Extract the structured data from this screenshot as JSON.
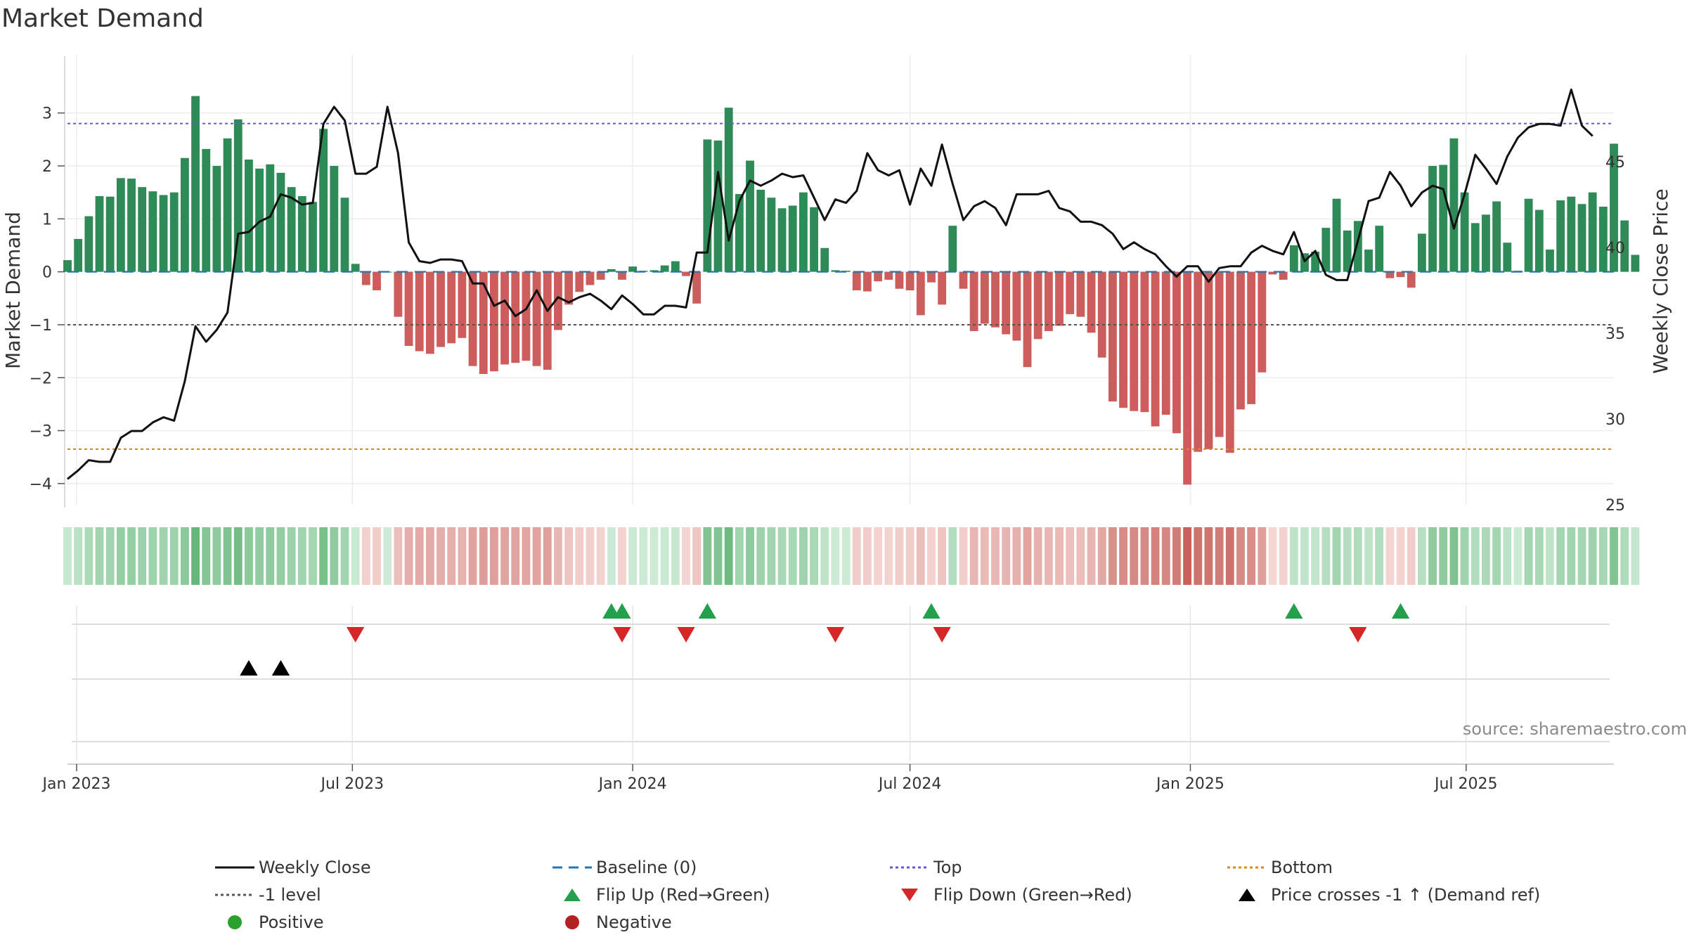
{
  "title": "Market Demand",
  "source": "source: sharemaestro.com",
  "colors": {
    "positive_bar": "#2e8b57",
    "negative_bar": "#cd5c5c",
    "close_line": "#111111",
    "baseline": "#1f77b4",
    "top_line": "#6a5acd",
    "minus1_line": "#555555",
    "bottom_line": "#d98c1a",
    "flip_up": "#22a04b",
    "flip_down": "#d62728",
    "price_cross": "#000000",
    "positive_dot": "#2ca02c",
    "negative_dot": "#b22222"
  },
  "legend": [
    {
      "key": "weekly_close",
      "label": "Weekly Close",
      "icon": "solid-line"
    },
    {
      "key": "baseline",
      "label": "Baseline (0)",
      "icon": "dashed-line"
    },
    {
      "key": "top",
      "label": "Top",
      "icon": "dotted-line"
    },
    {
      "key": "bottom",
      "label": "Bottom",
      "icon": "dotted-line"
    },
    {
      "key": "minus1",
      "label": "-1 level",
      "icon": "dotted-line"
    },
    {
      "key": "flip_up",
      "label": "Flip Up (Red→Green)",
      "icon": "triangle-up"
    },
    {
      "key": "flip_down",
      "label": "Flip Down (Green→Red)",
      "icon": "triangle-down"
    },
    {
      "key": "price_cross",
      "label": "Price crosses -1 ↑ (Demand ref)",
      "icon": "triangle-up"
    },
    {
      "key": "positive",
      "label": "Positive",
      "icon": "circle"
    },
    {
      "key": "negative",
      "label": "Negative",
      "icon": "circle"
    }
  ],
  "chart_data": {
    "type": "bar",
    "title": "Market Demand",
    "ylabel": "Market Demand",
    "y2label": "Weekly Close Price",
    "ylim": [
      -4.4,
      3.7
    ],
    "y2lim": [
      25,
      50
    ],
    "yticks": [
      "−4",
      "−3",
      "−2",
      "−1",
      "0",
      "1",
      "2",
      "3"
    ],
    "yticks_values": [
      -4,
      -3,
      -2,
      -1,
      0,
      1,
      2,
      3
    ],
    "y2ticks": [
      "25",
      "30",
      "35",
      "40",
      "45"
    ],
    "y2ticks_values": [
      25,
      30,
      35,
      40,
      45
    ],
    "x_start": "2022-12-26",
    "x_end": "2025-10-06",
    "xticks": [
      {
        "label": "Jan 2023",
        "date": "2023-01-01"
      },
      {
        "label": "Jul 2023",
        "date": "2023-07-01"
      },
      {
        "label": "Jan 2024",
        "date": "2024-01-01"
      },
      {
        "label": "Jul 2024",
        "date": "2024-07-01"
      },
      {
        "label": "Jan 2025",
        "date": "2025-01-01"
      },
      {
        "label": "Jul 2025",
        "date": "2025-07-01"
      }
    ],
    "first_week": "2022-12-26",
    "week_days": 7,
    "grid": true,
    "reference_lines": {
      "top": 2.8,
      "minus1": -1.0,
      "bottom": -3.35,
      "baseline": 0
    },
    "demand": [
      0.22,
      0.62,
      1.05,
      1.43,
      1.42,
      1.77,
      1.76,
      1.6,
      1.52,
      1.45,
      1.5,
      2.15,
      3.32,
      2.32,
      2.0,
      2.52,
      2.88,
      2.12,
      1.95,
      2.03,
      1.87,
      1.6,
      1.43,
      1.32,
      2.7,
      2.0,
      1.4,
      0.15,
      -0.25,
      -0.35,
      0,
      -0.85,
      -1.4,
      -1.5,
      -1.55,
      -1.42,
      -1.35,
      -1.25,
      -1.78,
      -1.93,
      -1.88,
      -1.75,
      -1.72,
      -1.68,
      -1.78,
      -1.85,
      -1.1,
      -0.62,
      -0.38,
      -0.25,
      -0.15,
      0.05,
      -0.15,
      0.1,
      0.02,
      0.03,
      0.12,
      0.2,
      -0.08,
      -0.6,
      2.5,
      2.48,
      3.1,
      1.47,
      2.1,
      1.55,
      1.4,
      1.2,
      1.25,
      1.5,
      1.22,
      0.45,
      0.03,
      0.02,
      -0.35,
      -0.37,
      -0.18,
      -0.15,
      -0.32,
      -0.35,
      -0.82,
      -0.2,
      -0.62,
      0.87,
      -0.32,
      -1.12,
      -0.98,
      -1.05,
      -1.18,
      -1.3,
      -1.8,
      -1.27,
      -1.12,
      -1.02,
      -0.8,
      -0.85,
      -1.15,
      -1.62,
      -2.45,
      -2.57,
      -2.63,
      -2.65,
      -2.92,
      -2.7,
      -3.05,
      -4.02,
      -3.4,
      -3.35,
      -3.12,
      -3.42,
      -2.6,
      -2.5,
      -1.9,
      -0.05,
      -0.15,
      0.5,
      0.35,
      0.38,
      0.83,
      1.38,
      0.78,
      0.96,
      0.42,
      0.87,
      -0.12,
      -0.1,
      -0.3,
      0.72,
      2.0,
      2.02,
      2.52,
      1.5,
      0.92,
      1.08,
      1.33,
      0.55,
      0.02,
      1.38,
      1.17,
      0.42,
      1.35,
      1.42,
      1.28,
      1.5,
      1.23,
      2.42,
      0.97,
      0.32
    ],
    "close": [
      26.5,
      27,
      27.6,
      27.5,
      27.5,
      28.9,
      29.3,
      29.3,
      29.8,
      30.1,
      29.9,
      32.2,
      35.4,
      34.5,
      35.2,
      36.2,
      40.8,
      40.9,
      41.5,
      41.8,
      43.1,
      42.9,
      42.5,
      42.6,
      47.2,
      48.2,
      47.4,
      44.3,
      44.3,
      44.7,
      48.2,
      45.5,
      40.3,
      39.2,
      39.1,
      39.3,
      39.3,
      39.2,
      37.9,
      37.9,
      36.6,
      36.9,
      36,
      36.4,
      37.5,
      36.3,
      37.1,
      36.8,
      37.1,
      37.3,
      36.9,
      36.4,
      37.2,
      36.7,
      36.1,
      36.1,
      36.6,
      36.6,
      36.5,
      39.7,
      39.7,
      44.4,
      40.4,
      42.7,
      43.9,
      43.6,
      43.9,
      44.3,
      44.1,
      44.2,
      42.9,
      41.6,
      42.8,
      42.6,
      43.3,
      45.5,
      44.5,
      44.2,
      44.5,
      42.5,
      44.6,
      43.6,
      46,
      43.7,
      41.6,
      42.4,
      42.7,
      42.3,
      41.3,
      43.1,
      43.1,
      43.1,
      43.3,
      42.3,
      42.1,
      41.5,
      41.5,
      41.3,
      40.8,
      39.9,
      40.3,
      39.9,
      39.6,
      38.9,
      38.3,
      38.9,
      38.9,
      38,
      38.8,
      38.9,
      38.9,
      39.7,
      40.1,
      39.8,
      39.6,
      40.9,
      39.2,
      39.8,
      38.4,
      38.1,
      38.1,
      40.4,
      42.7,
      42.9,
      44.4,
      43.6,
      42.4,
      43.2,
      43.6,
      43.4,
      41.1,
      43.1,
      45.4,
      44.6,
      43.7,
      45.3,
      46.4,
      47,
      47.2,
      47.2,
      47.1,
      49.2,
      47.1,
      46.5
    ],
    "flip_up": [
      "2023-12-18",
      "2023-12-25",
      "2024-02-19",
      "2024-07-15",
      "2025-03-10",
      "2025-05-19"
    ],
    "flip_down": [
      "2023-07-03",
      "2023-12-25",
      "2024-02-05",
      "2024-05-13",
      "2024-07-22",
      "2025-04-21"
    ],
    "price_cross": [
      "2023-04-24",
      "2023-05-15"
    ]
  }
}
